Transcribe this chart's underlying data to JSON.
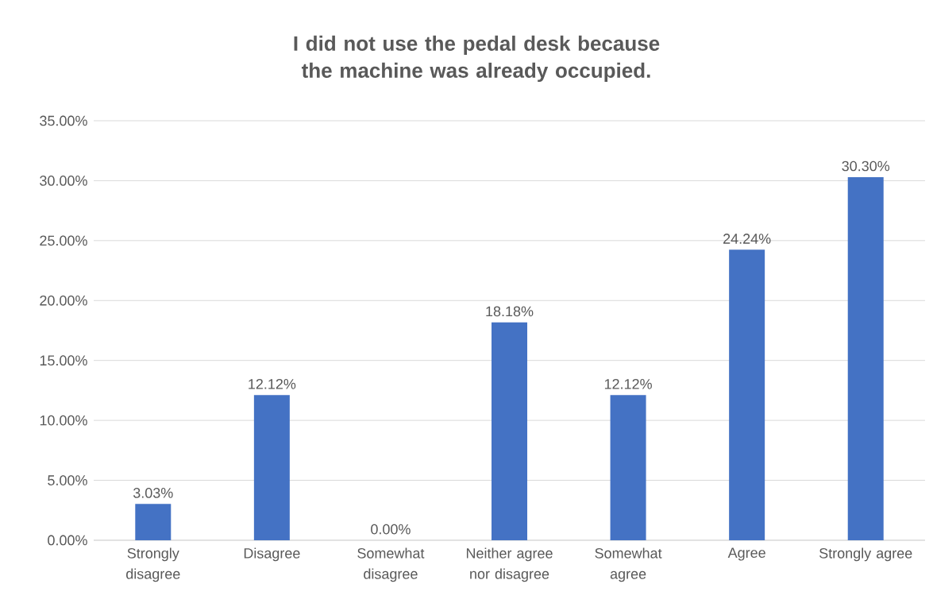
{
  "chart_data": {
    "type": "bar",
    "title": "I did not use the pedal desk because the machine was already occupied.",
    "categories": [
      "Strongly disagree",
      "Disagree",
      "Somewhat disagree",
      "Neither agree nor disagree",
      "Somewhat agree",
      "Agree",
      "Strongly agree"
    ],
    "values": [
      3.03,
      12.12,
      0.0,
      18.18,
      12.12,
      24.24,
      30.3
    ],
    "value_labels": [
      "3.03%",
      "12.12%",
      "0.00%",
      "18.18%",
      "12.12%",
      "24.24%",
      "30.30%"
    ],
    "color": "#4472c4",
    "ylim": [
      0,
      35
    ],
    "yticks": [
      {
        "value": 0,
        "label": "0.00%"
      },
      {
        "value": 5,
        "label": "5.00%"
      },
      {
        "value": 10,
        "label": "10.00%"
      },
      {
        "value": 15,
        "label": "15.00%"
      },
      {
        "value": 20,
        "label": "20.00%"
      },
      {
        "value": 25,
        "label": "25.00%"
      },
      {
        "value": 30,
        "label": "30.00%"
      },
      {
        "value": 35,
        "label": "35.00%"
      }
    ],
    "grid": "y"
  }
}
